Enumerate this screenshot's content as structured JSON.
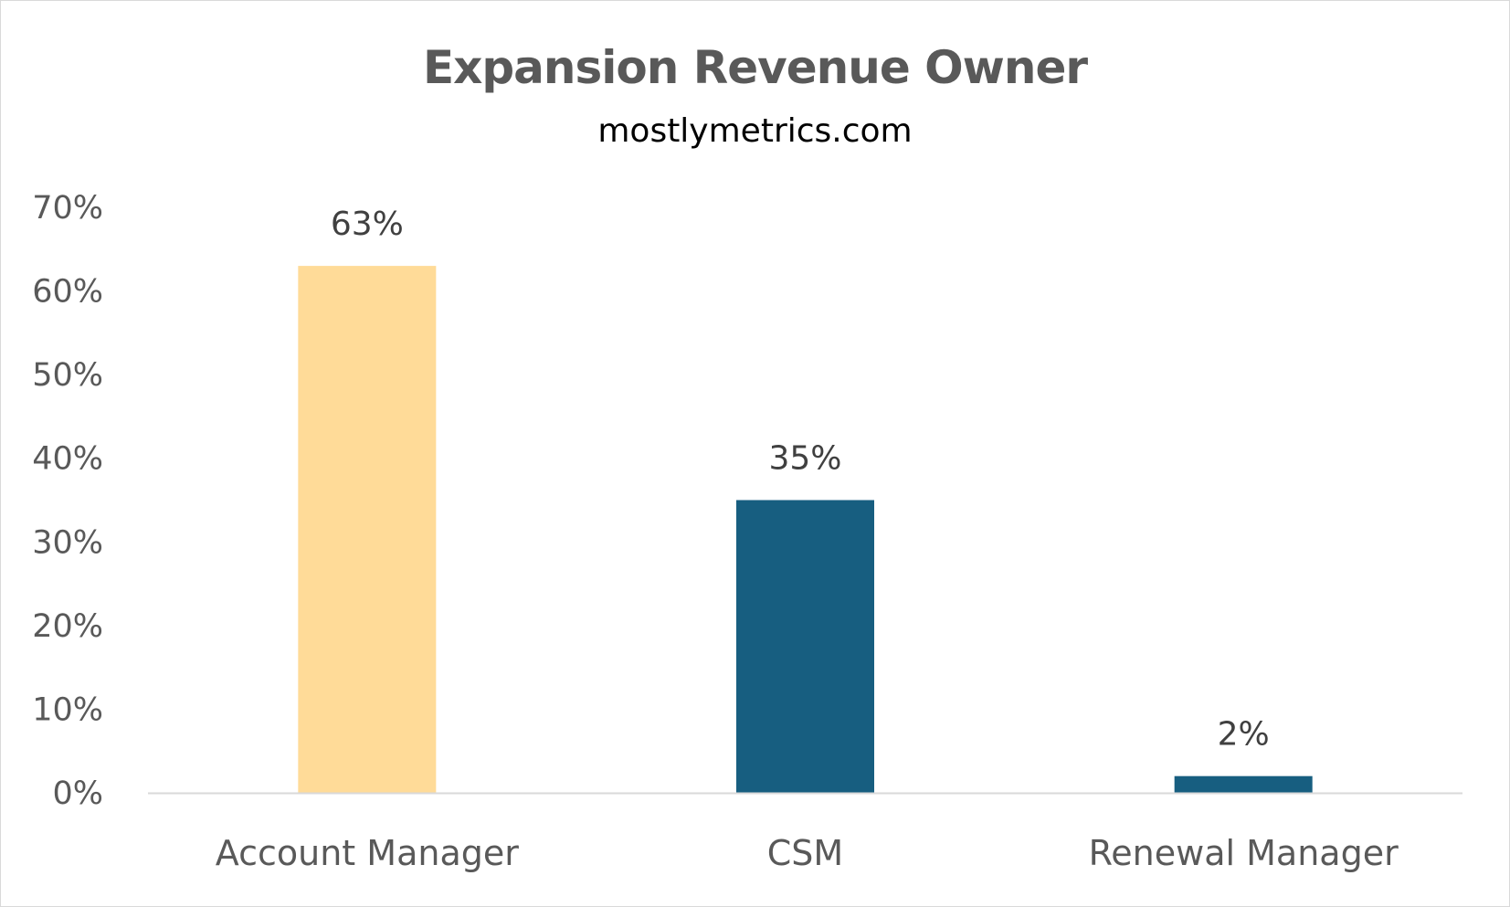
{
  "chart_data": {
    "type": "bar",
    "title": "Expansion Revenue Owner",
    "subtitle": "mostlymetrics.com",
    "xlabel": "",
    "ylabel": "",
    "categories": [
      "Account Manager",
      "CSM",
      "Renewal Manager"
    ],
    "values": [
      63,
      35,
      2
    ],
    "data_labels": [
      "63%",
      "35%",
      "2%"
    ],
    "bar_colors": [
      "#FFDB98",
      "#175E80",
      "#175E80"
    ],
    "ylim": [
      0,
      70
    ],
    "yticks": [
      0,
      10,
      20,
      30,
      40,
      50,
      60,
      70
    ],
    "ytick_labels": [
      "0%",
      "10%",
      "20%",
      "30%",
      "40%",
      "50%",
      "60%",
      "70%"
    ],
    "grid": false,
    "legend": "none"
  }
}
